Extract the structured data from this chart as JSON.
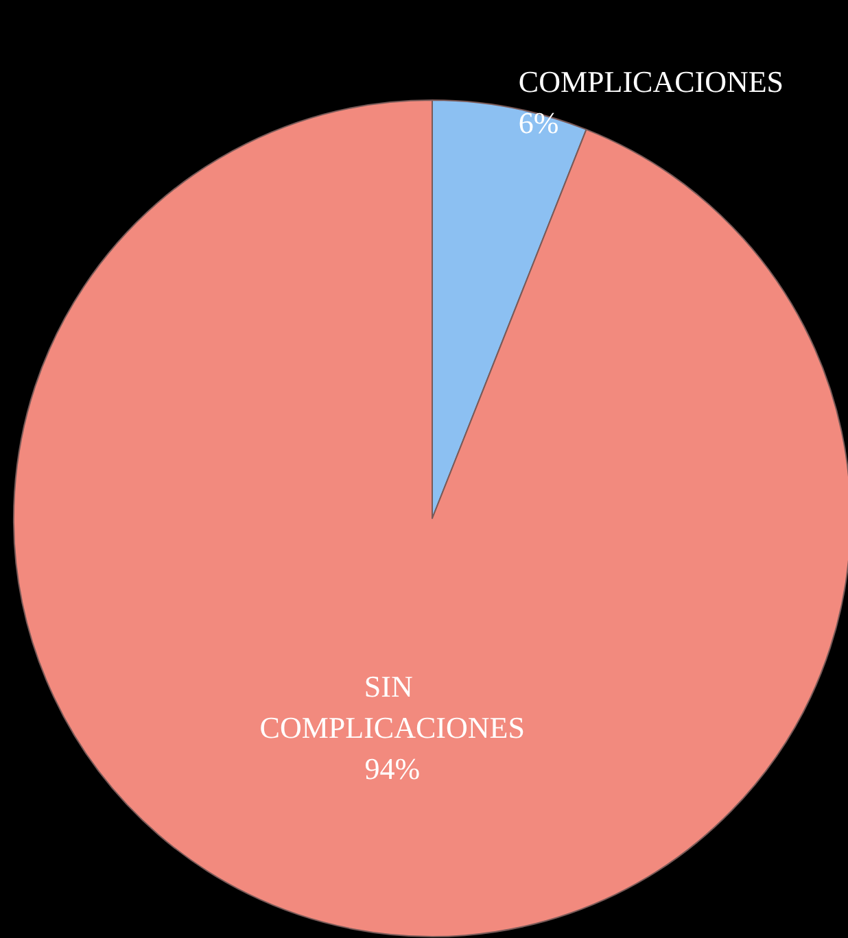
{
  "chart_data": {
    "type": "pie",
    "categories": [
      "COMPLICACIONES",
      "SIN COMPLICACIONES"
    ],
    "values": [
      6,
      94
    ],
    "colors": [
      "#8cc0f2",
      "#f28a7e"
    ],
    "value_labels": [
      "6%",
      "94%"
    ]
  }
}
